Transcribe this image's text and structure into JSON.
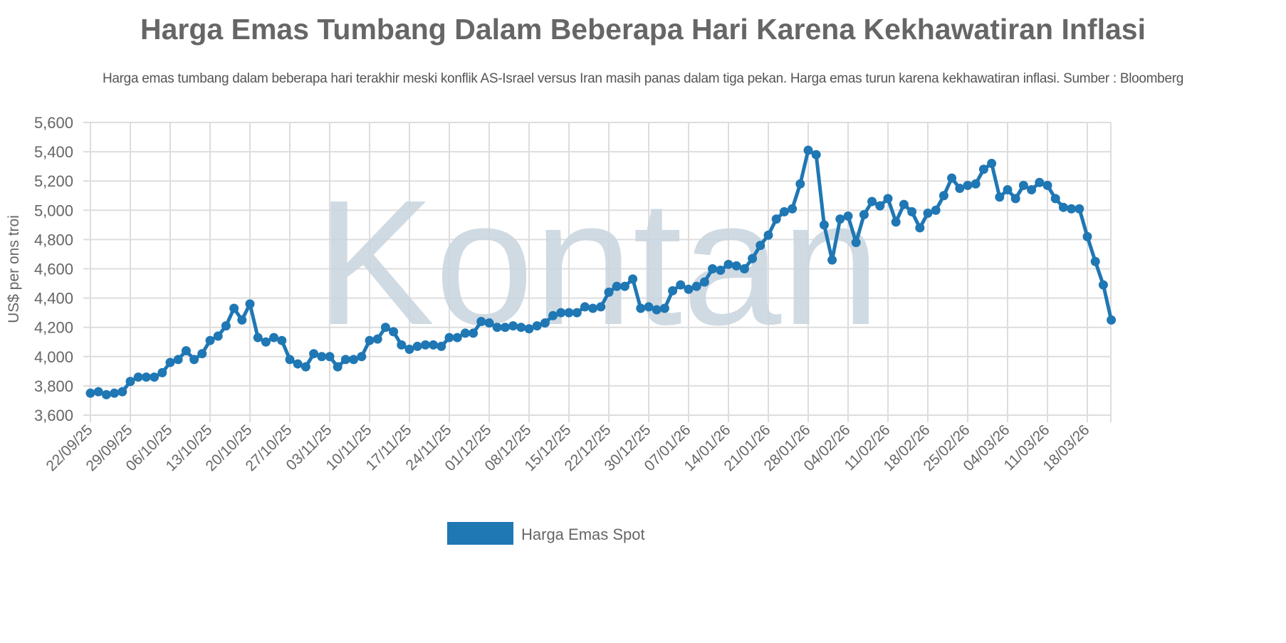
{
  "title": "Harga Emas Tumbang Dalam Beberapa Hari Karena Kekhawatiran Inflasi",
  "subtitle": "Harga emas tumbang dalam beberapa hari terakhir meski konflik AS-Israel versus Iran masih panas dalam tiga pekan. Harga emas turun karena kekhawatiran inflasi. Sumber : Bloomberg",
  "watermark": "Kontan",
  "colors": {
    "series": "#1f77b4",
    "grid": "#dddddd",
    "text": "#666666",
    "watermark": "#cbd6df"
  },
  "chart_data": {
    "type": "line",
    "ylabel": "US$ per ons troi",
    "ylim": [
      3600,
      5600
    ],
    "yticks": [
      "3,600",
      "3,800",
      "4,000",
      "4,200",
      "4,400",
      "4,600",
      "4,800",
      "5,000",
      "5,200",
      "5,400",
      "5,600"
    ],
    "grid": true,
    "legend_position": "bottom",
    "x_tick_labels": [
      "22/09/25",
      "29/09/25",
      "06/10/25",
      "13/10/25",
      "20/10/25",
      "27/10/25",
      "03/11/25",
      "10/11/25",
      "17/11/25",
      "24/11/25",
      "01/12/25",
      "08/12/25",
      "15/12/25",
      "22/12/25",
      "30/12/25",
      "07/01/26",
      "14/01/26",
      "21/01/26",
      "28/01/26",
      "04/02/26",
      "11/02/26",
      "18/02/26",
      "25/02/26",
      "04/03/26",
      "11/03/26",
      "18/03/26"
    ],
    "points_per_tick": 5,
    "series": [
      {
        "name": "Harga Emas Spot",
        "values": [
          3750,
          3760,
          3740,
          3750,
          3760,
          3830,
          3860,
          3860,
          3860,
          3890,
          3960,
          3980,
          4040,
          3980,
          4020,
          4110,
          4140,
          4210,
          4330,
          4250,
          4360,
          4130,
          4100,
          4130,
          4110,
          3980,
          3950,
          3930,
          4020,
          4000,
          4000,
          3930,
          3980,
          3980,
          4000,
          4110,
          4120,
          4200,
          4170,
          4080,
          4050,
          4070,
          4080,
          4080,
          4070,
          4130,
          4130,
          4160,
          4160,
          4240,
          4230,
          4200,
          4200,
          4210,
          4200,
          4190,
          4210,
          4230,
          4280,
          4300,
          4300,
          4300,
          4340,
          4330,
          4340,
          4440,
          4480,
          4480,
          4530,
          4330,
          4340,
          4320,
          4330,
          4450,
          4490,
          4460,
          4480,
          4510,
          4600,
          4590,
          4630,
          4620,
          4600,
          4670,
          4760,
          4830,
          4940,
          4990,
          5010,
          5180,
          5410,
          5380,
          4900,
          4660,
          4940,
          4960,
          4780,
          4970,
          5060,
          5030,
          5080,
          4920,
          5040,
          4990,
          4880,
          4980,
          5000,
          5100,
          5220,
          5150,
          5170,
          5180,
          5280,
          5320,
          5090,
          5140,
          5080,
          5170,
          5140,
          5190,
          5170,
          5080,
          5020,
          5010,
          5010,
          4820,
          4650,
          4490,
          4250
        ]
      }
    ]
  }
}
